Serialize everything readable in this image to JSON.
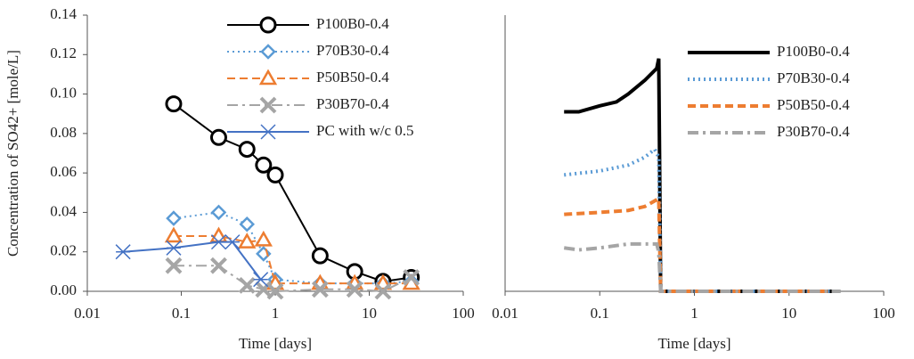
{
  "chart_data": [
    {
      "type": "line",
      "xlabel": "Time [days]",
      "ylabel": "Concentration of SO42+ [mole/L]",
      "xscale": "log",
      "xlim": [
        0.01,
        100
      ],
      "xticks": [
        0.01,
        0.1,
        1,
        10,
        100
      ],
      "ylim": [
        0,
        0.14
      ],
      "yticks": [
        {
          "value": 0,
          "label": "0.00"
        },
        {
          "value": 0.02,
          "label": "0.02"
        },
        {
          "value": 0.04,
          "label": "0.04"
        },
        {
          "value": 0.06,
          "label": "0.06"
        },
        {
          "value": 0.08,
          "label": "0.08"
        },
        {
          "value": 0.1,
          "label": "0.10"
        },
        {
          "value": 0.12,
          "label": "0.12"
        },
        {
          "value": 0.14,
          "label": "0.14"
        }
      ],
      "legend": "upper right",
      "series": [
        {
          "name": "P100B0-0.4",
          "color": "#000000",
          "marker": "circle",
          "dash": "solid",
          "x": [
            0.083,
            0.25,
            0.5,
            0.75,
            1,
            3,
            7,
            14,
            28
          ],
          "values": [
            0.095,
            0.078,
            0.072,
            0.064,
            0.059,
            0.018,
            0.01,
            0.005,
            0.007
          ]
        },
        {
          "name": "P70B30-0.4",
          "color": "#5b9bd5",
          "marker": "diamond",
          "dash": "dot",
          "x": [
            0.083,
            0.25,
            0.5,
            0.75,
            1,
            3,
            7,
            14,
            28
          ],
          "values": [
            0.037,
            0.04,
            0.034,
            0.019,
            0.006,
            0.004,
            0.004,
            0.004,
            0.005
          ]
        },
        {
          "name": "P50B50-0.4",
          "color": "#ed7d31",
          "marker": "triangle",
          "dash": "dash",
          "x": [
            0.083,
            0.25,
            0.5,
            0.75,
            1,
            3,
            7,
            14,
            28
          ],
          "values": [
            0.028,
            0.028,
            0.025,
            0.026,
            0.004,
            0.004,
            0.004,
            0.004,
            0.004
          ]
        },
        {
          "name": "P30B70-0.4",
          "color": "#a5a5a5",
          "marker": "x",
          "dash": "dashdot",
          "x": [
            0.083,
            0.25,
            0.5,
            0.75,
            1,
            3,
            7,
            14,
            28
          ],
          "values": [
            0.013,
            0.013,
            0.003,
            0.001,
            0,
            0.001,
            0.001,
            0,
            0.007
          ]
        },
        {
          "name": "PC with w/c 0.5",
          "color": "#4472c4",
          "marker": "asterisk",
          "dash": "solid",
          "x": [
            0.024,
            0.083,
            0.25,
            0.35,
            0.7
          ],
          "values": [
            0.02,
            0.022,
            0.025,
            0.025,
            0.006
          ]
        }
      ]
    },
    {
      "type": "line",
      "xlabel": "Time [days]",
      "xscale": "log",
      "xlim": [
        0.01,
        100
      ],
      "xticks": [
        0.01,
        0.1,
        1,
        10,
        100
      ],
      "ylim": [
        0,
        0.14
      ],
      "legend": "upper right",
      "series": [
        {
          "name": "P100B0-0.4",
          "color": "#000000",
          "dash": "solid",
          "width": 4,
          "x": [
            0.042,
            0.06,
            0.1,
            0.15,
            0.2,
            0.3,
            0.4,
            0.42,
            0.44,
            35
          ],
          "values": [
            0.091,
            0.091,
            0.094,
            0.096,
            0.1,
            0.107,
            0.113,
            0.118,
            0,
            0
          ]
        },
        {
          "name": "P70B30-0.4",
          "color": "#5b9bd5",
          "dash": "dot",
          "width": 4,
          "x": [
            0.042,
            0.1,
            0.2,
            0.3,
            0.38,
            0.42,
            0.44,
            35
          ],
          "values": [
            0.059,
            0.061,
            0.064,
            0.068,
            0.072,
            0.068,
            0,
            0
          ]
        },
        {
          "name": "P50B50-0.4",
          "color": "#ed7d31",
          "dash": "dash",
          "width": 4,
          "x": [
            0.042,
            0.1,
            0.2,
            0.3,
            0.42,
            0.44,
            35
          ],
          "values": [
            0.039,
            0.04,
            0.041,
            0.043,
            0.047,
            0,
            0
          ]
        },
        {
          "name": "P30B70-0.4",
          "color": "#a5a5a5",
          "dash": "dashdot",
          "width": 4,
          "x": [
            0.042,
            0.06,
            0.1,
            0.2,
            0.35,
            0.4,
            0.42,
            0.44,
            35
          ],
          "values": [
            0.022,
            0.021,
            0.022,
            0.024,
            0.024,
            0.024,
            0.02,
            0,
            0
          ]
        }
      ]
    }
  ]
}
